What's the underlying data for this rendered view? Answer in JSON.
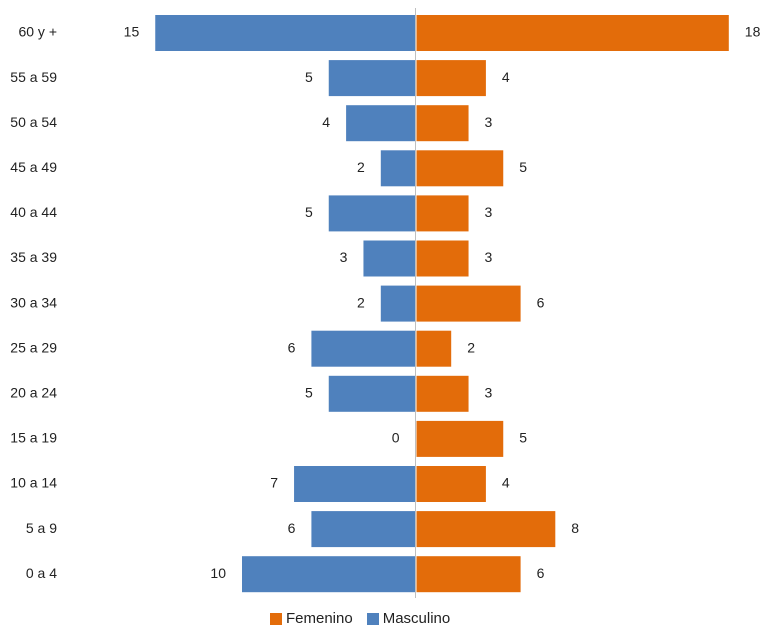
{
  "chart_data": {
    "type": "bar",
    "orientation": "horizontal",
    "categories": [
      "60 y +",
      "55 a 59",
      "50 a 54",
      "45 a 49",
      "40 a 44",
      "35 a 39",
      "30 a 34",
      "25 a 29",
      "20 a 24",
      "15 a 19",
      "10 a 14",
      "5 a 9",
      "0 a 4"
    ],
    "series": [
      {
        "name": "Femenino",
        "color": "#E36C0A",
        "values": [
          18,
          4,
          3,
          5,
          3,
          3,
          6,
          2,
          3,
          5,
          4,
          8,
          6
        ]
      },
      {
        "name": "Masculino",
        "color": "#4F81BD",
        "values": [
          15,
          5,
          4,
          2,
          5,
          3,
          2,
          6,
          5,
          0,
          7,
          6,
          10
        ]
      }
    ],
    "legend_position": "bottom",
    "grid": false
  }
}
